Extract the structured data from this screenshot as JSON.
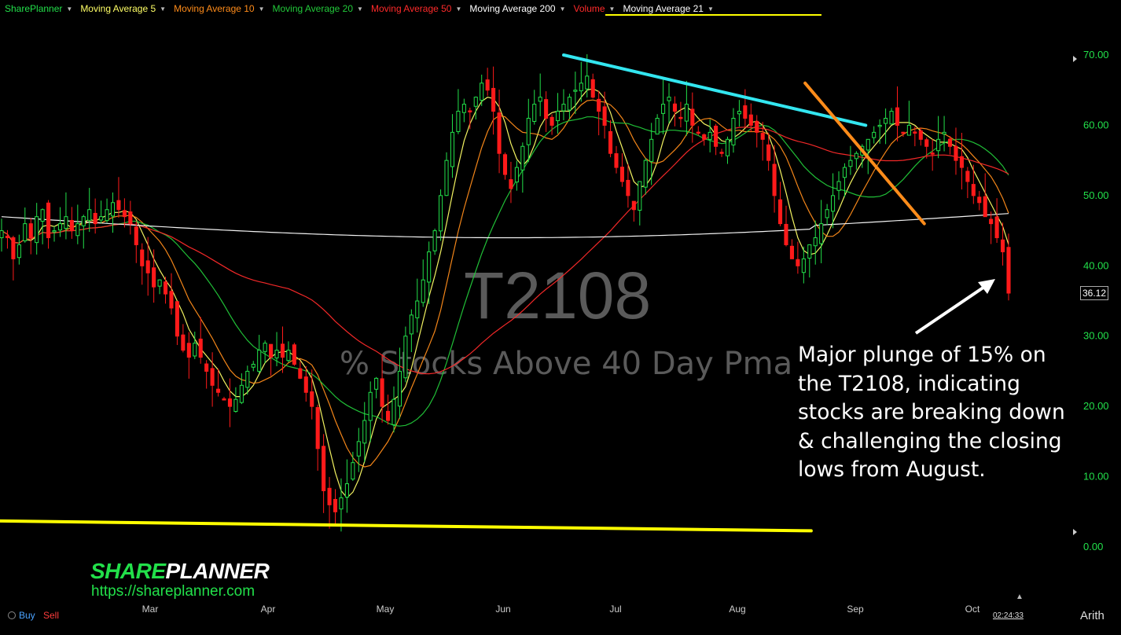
{
  "toolbar": {
    "items": [
      {
        "label": "SharePlanner",
        "color": "#22e04a"
      },
      {
        "label": "Moving Average 5",
        "color": "#ffff66"
      },
      {
        "label": "Moving Average 10",
        "color": "#ff8c1a"
      },
      {
        "label": "Moving Average 20",
        "color": "#22c93a"
      },
      {
        "label": "Moving Average 50",
        "color": "#ff2a2a"
      },
      {
        "label": "Moving Average 200",
        "color": "#ffffff"
      },
      {
        "label": "Volume",
        "color": "#ff2a2a"
      },
      {
        "label": "Moving Average 21",
        "color": "#ffffff"
      }
    ]
  },
  "watermark": {
    "title": "T2108",
    "subtitle": "% Stocks Above 40 Day Pma"
  },
  "annotation": {
    "text": "Major plunge of 15% on the T2108, indicating stocks are breaking down & challenging the closing lows from August."
  },
  "logo": {
    "part1": "SHARE",
    "part2": "PLANNER",
    "url": "https://shareplanner.com"
  },
  "footer": {
    "buy": "Buy",
    "sell": "Sell",
    "time": "02:24:33",
    "scale_mode": "Arith"
  },
  "chart_data": {
    "type": "candlestick",
    "title": "T2108",
    "subtitle": "% Stocks Above 40 Day Pma",
    "y_ticks": [
      "70.00",
      "60.00",
      "50.00",
      "40.00",
      "30.00",
      "20.00",
      "10.00",
      "0.00"
    ],
    "ylim": [
      0,
      70
    ],
    "x_ticks": [
      "Mar",
      "Apr",
      "May",
      "Jun",
      "Jul",
      "Aug",
      "Sep",
      "Oct"
    ],
    "last_price": "36.12",
    "up_color": "#22e04a",
    "down_color": "#ff1a1a",
    "closes": [
      45,
      44,
      41,
      43,
      46,
      44,
      47,
      48,
      44,
      45,
      46,
      47,
      45,
      46,
      47,
      48,
      46,
      47,
      48,
      49,
      48,
      47,
      46,
      43,
      40,
      39,
      37,
      38,
      36,
      34,
      30,
      28,
      27,
      29,
      27,
      25,
      23,
      22,
      21,
      20,
      21,
      23,
      25,
      26,
      28,
      29,
      27,
      28,
      27,
      28,
      26,
      24,
      22,
      20,
      14,
      8,
      6,
      5,
      7,
      9,
      12,
      15,
      18,
      22,
      24,
      20,
      18,
      21,
      25,
      30,
      33,
      35,
      38,
      42,
      45,
      50,
      55,
      59,
      62,
      63,
      62,
      64,
      66,
      65,
      62,
      56,
      53,
      51,
      54,
      57,
      61,
      63,
      64,
      61,
      60,
      62,
      63,
      64,
      65,
      66,
      67,
      64,
      62,
      60,
      56,
      54,
      52,
      50,
      48,
      52,
      55,
      58,
      61,
      63,
      64,
      62,
      61,
      63,
      60,
      59,
      58,
      59,
      57,
      56,
      58,
      61,
      62,
      61,
      60,
      59,
      58,
      55,
      50,
      46,
      43,
      41,
      40,
      41,
      43,
      44,
      46,
      48,
      50,
      52,
      54,
      55,
      56,
      57,
      58,
      59,
      60,
      61,
      62,
      60,
      59,
      60,
      59,
      58,
      57,
      56,
      58,
      59,
      57,
      55,
      54,
      52,
      50,
      49,
      47,
      46,
      44,
      42,
      36.12
    ],
    "series": [
      {
        "name": "Moving Average 5",
        "color": "#ffff66"
      },
      {
        "name": "Moving Average 10",
        "color": "#ff8c1a"
      },
      {
        "name": "Moving Average 20",
        "color": "#22c93a"
      },
      {
        "name": "Moving Average 50",
        "color": "#ff2a2a"
      },
      {
        "name": "Moving Average 200",
        "color": "#ffffff"
      }
    ],
    "trendlines": [
      {
        "color": "#33e6f0",
        "from": [
          0.558,
          70
        ],
        "to": [
          0.857,
          60
        ]
      },
      {
        "color": "#ff8c1a",
        "from": [
          0.797,
          66
        ],
        "to": [
          0.915,
          46
        ]
      },
      {
        "color": "#ffff00",
        "from": [
          0.0,
          3.7
        ],
        "to": [
          0.803,
          2.3
        ]
      }
    ]
  }
}
